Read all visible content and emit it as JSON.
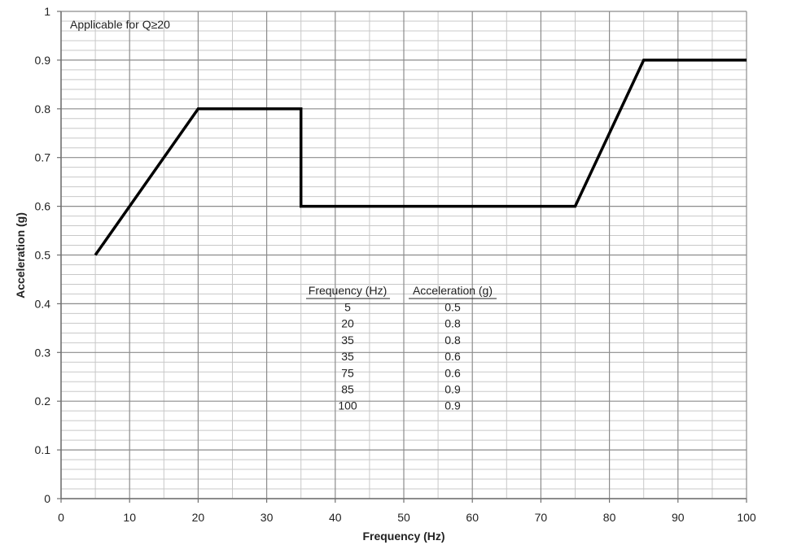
{
  "chart_data": {
    "type": "line",
    "title": "",
    "annotation": "Applicable for Q≥20",
    "xlabel": "Frequency (Hz)",
    "ylabel": "Acceleration (g)",
    "xlim": [
      0,
      100
    ],
    "ylim": [
      0,
      1
    ],
    "x_ticks": [
      "0",
      "10",
      "20",
      "30",
      "40",
      "50",
      "60",
      "70",
      "80",
      "90",
      "100"
    ],
    "y_ticks": [
      "0",
      "0.1",
      "0.2",
      "0.3",
      "0.4",
      "0.5",
      "0.6",
      "0.7",
      "0.8",
      "0.9",
      "1"
    ],
    "grid": true,
    "legend": "none",
    "line_color": "#000000",
    "series": [
      {
        "x": [
          5,
          20,
          35,
          35,
          75,
          85,
          100
        ],
        "y": [
          0.5,
          0.8,
          0.8,
          0.6,
          0.6,
          0.9,
          0.9
        ]
      }
    ],
    "table": {
      "headers": [
        "Frequency (Hz)",
        "Acceleration (g)"
      ],
      "rows": [
        [
          "5",
          "0.5"
        ],
        [
          "20",
          "0.8"
        ],
        [
          "35",
          "0.8"
        ],
        [
          "35",
          "0.6"
        ],
        [
          "75",
          "0.6"
        ],
        [
          "85",
          "0.9"
        ],
        [
          "100",
          "0.9"
        ]
      ]
    }
  }
}
